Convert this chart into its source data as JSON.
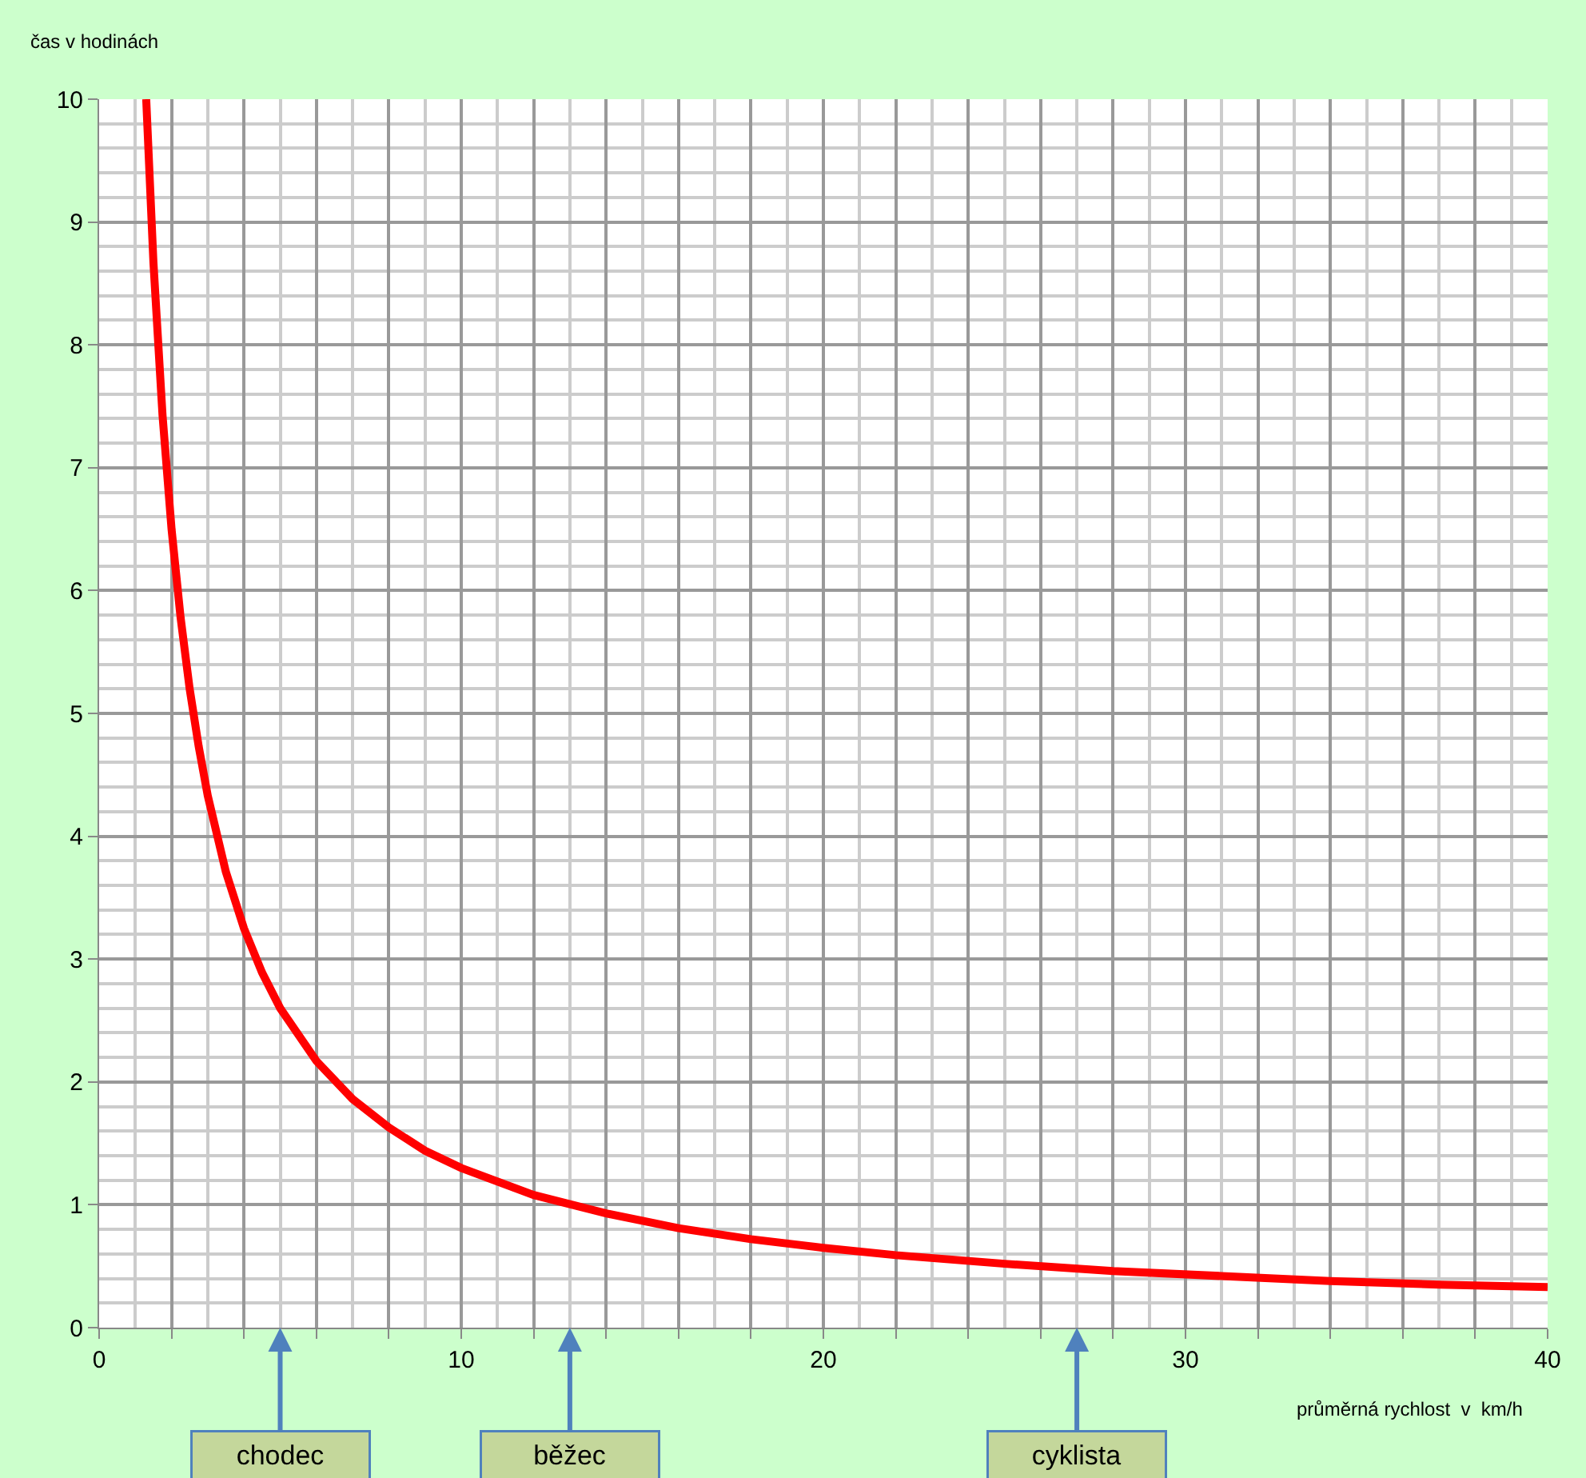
{
  "chart_data": {
    "type": "line",
    "xlabel": "průměrná rychlost  v  km/h",
    "ylabel": "čas v hodinách",
    "x": [
      1.3,
      1.5,
      1.75,
      2,
      2.25,
      2.5,
      2.75,
      3,
      3.5,
      4,
      4.5,
      5,
      6,
      7,
      8,
      9,
      10,
      12,
      14,
      16,
      18,
      20,
      22,
      25,
      28,
      31,
      34,
      37,
      40
    ],
    "series": [
      {
        "color": "#ff0000",
        "values": [
          10,
          8.67,
          7.43,
          6.5,
          5.78,
          5.2,
          4.73,
          4.33,
          3.71,
          3.25,
          2.89,
          2.6,
          2.17,
          1.86,
          1.63,
          1.44,
          1.3,
          1.08,
          0.93,
          0.81,
          0.72,
          0.65,
          0.59,
          0.52,
          0.46,
          0.42,
          0.38,
          0.35,
          0.33
        ]
      }
    ],
    "xlim": [
      0,
      40
    ],
    "ylim": [
      0,
      10
    ],
    "xticks": [
      0,
      {
        "value": 2,
        "label": null
      },
      {
        "value": 4,
        "label": null
      },
      {
        "value": 6,
        "label": null
      },
      {
        "value": 8,
        "label": null
      },
      10,
      {
        "value": 12,
        "label": null
      },
      {
        "value": 14,
        "label": null
      },
      {
        "value": 16,
        "label": null
      },
      {
        "value": 18,
        "label": null
      },
      20,
      {
        "value": 22,
        "label": null
      },
      {
        "value": 24,
        "label": null
      },
      {
        "value": 26,
        "label": null
      },
      {
        "value": 28,
        "label": null
      },
      30,
      {
        "value": 32,
        "label": null
      },
      {
        "value": 34,
        "label": null
      },
      {
        "value": 36,
        "label": null
      },
      {
        "value": 38,
        "label": null
      },
      40
    ],
    "yticks": [
      0,
      1,
      2,
      3,
      4,
      5,
      6,
      7,
      8,
      9,
      10
    ],
    "grid": true,
    "marker": "none",
    "line_style": "solid",
    "annotations": [
      "chodec",
      "běžec",
      "cyklista"
    ]
  }
}
